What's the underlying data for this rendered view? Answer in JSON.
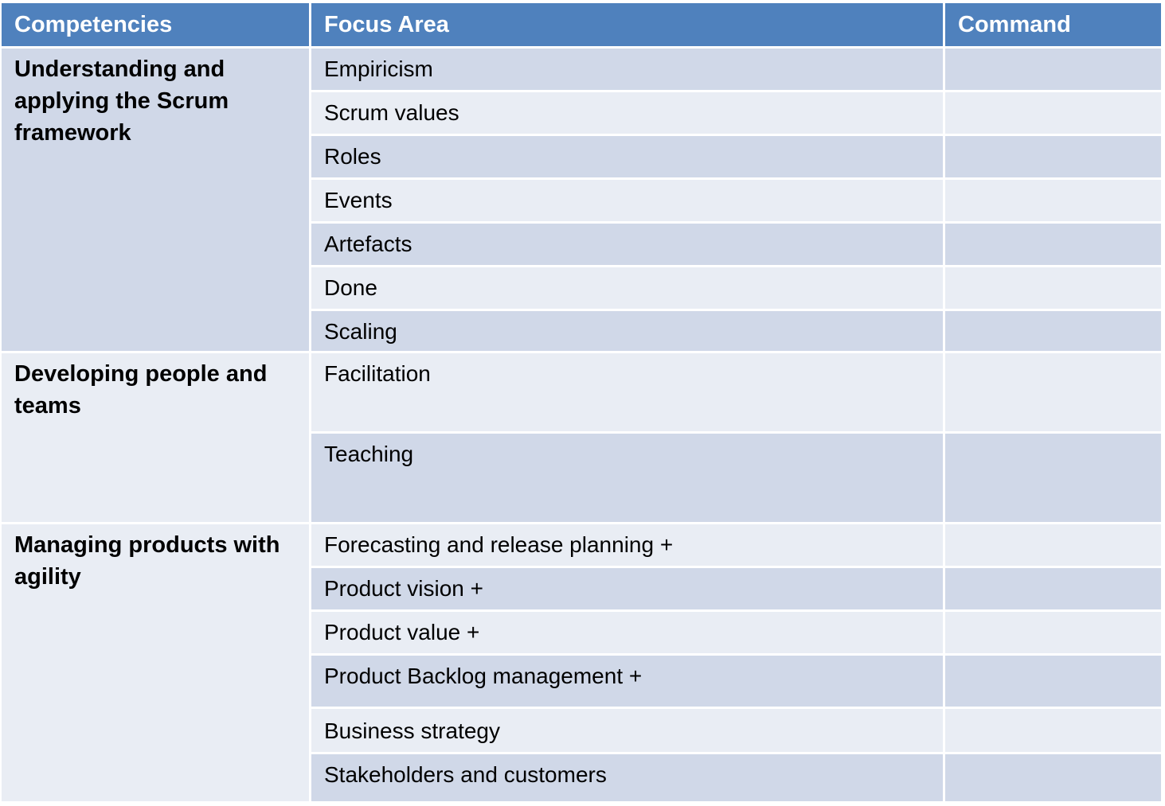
{
  "header": {
    "competencies": "Competencies",
    "focus_area": "Focus Area",
    "command": "Command"
  },
  "groups": [
    {
      "competency": "Understanding and\napplying the Scrum\nframework",
      "items": [
        {
          "focus": "Empiricism",
          "command": ""
        },
        {
          "focus": "Scrum values",
          "command": ""
        },
        {
          "focus": "Roles",
          "command": ""
        },
        {
          "focus": "Events",
          "command": ""
        },
        {
          "focus": "Artefacts",
          "command": ""
        },
        {
          "focus": "Done",
          "command": ""
        },
        {
          "focus": "Scaling",
          "command": ""
        }
      ]
    },
    {
      "competency": "Developing people and\nteams",
      "items": [
        {
          "focus": "Facilitation",
          "command": ""
        },
        {
          "focus": "Teaching",
          "command": ""
        }
      ]
    },
    {
      "competency": "Managing products with\nagility",
      "items": [
        {
          "focus": "Forecasting and release planning +",
          "command": ""
        },
        {
          "focus": "Product vision +",
          "command": ""
        },
        {
          "focus": "Product value +",
          "command": ""
        },
        {
          "focus": "Product Backlog management +",
          "command": ""
        },
        {
          "focus": "Business strategy",
          "command": ""
        },
        {
          "focus": "Stakeholders and customers",
          "command": ""
        }
      ]
    }
  ]
}
